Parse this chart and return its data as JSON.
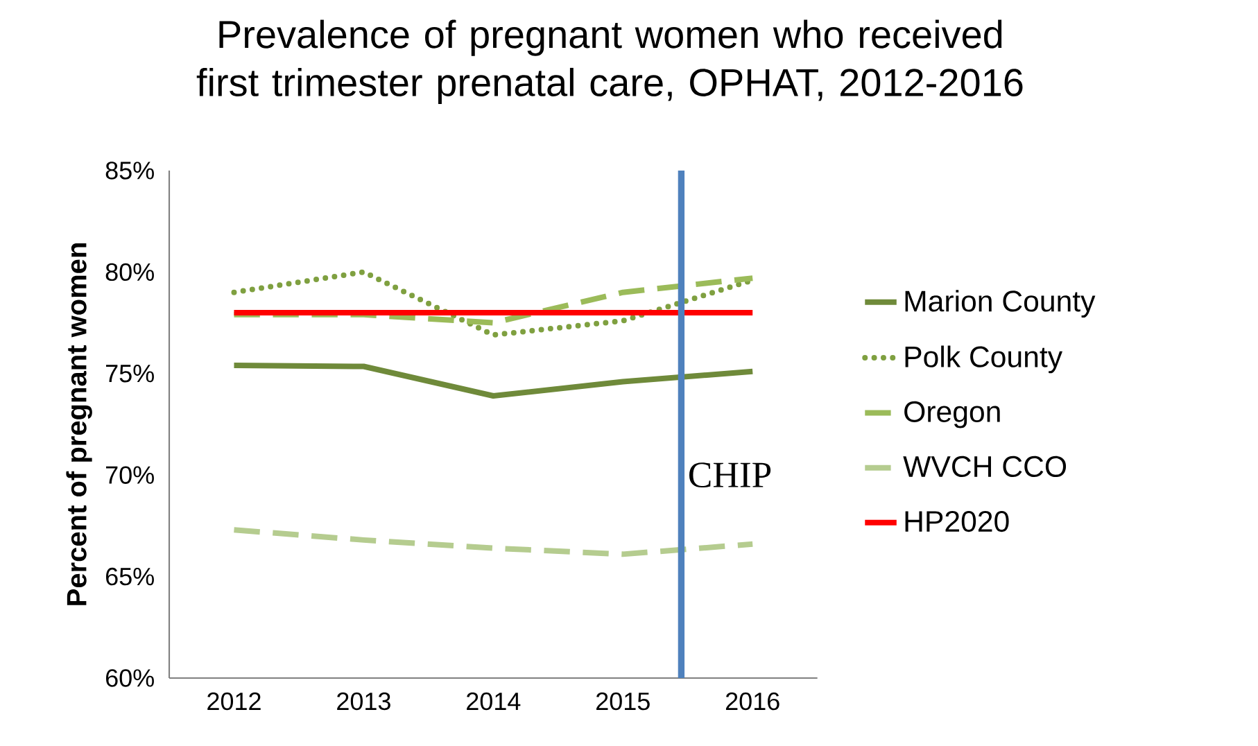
{
  "chart_data": {
    "type": "line",
    "title": "Prevalence of pregnant women who received first trimester prenatal care, OPHAT, 2012-2016",
    "ylabel": "Percent of pregnant women",
    "x": [
      2012,
      2013,
      2014,
      2015,
      2016
    ],
    "xlim": [
      2011.5,
      2016.5
    ],
    "xticks": [
      2012,
      2013,
      2014,
      2015,
      2016
    ],
    "ylim": [
      60,
      85
    ],
    "yticks": [
      {
        "value": 60,
        "label": "60%"
      },
      {
        "value": 65,
        "label": "65%"
      },
      {
        "value": 70,
        "label": "70%"
      },
      {
        "value": 75,
        "label": "75%"
      },
      {
        "value": 80,
        "label": "80%"
      },
      {
        "value": 85,
        "label": "85%"
      }
    ],
    "series": [
      {
        "name": "Marion County",
        "color": "#6f8a3a",
        "line_style": "solid",
        "values": [
          75.4,
          75.35,
          73.9,
          74.6,
          75.1
        ]
      },
      {
        "name": "Polk County",
        "color": "#7fa040",
        "line_style": "dotted",
        "values": [
          79.0,
          80.0,
          76.9,
          77.6,
          79.6
        ]
      },
      {
        "name": "Oregon",
        "color": "#9bbb59",
        "line_style": "dashed",
        "values": [
          77.9,
          77.9,
          77.5,
          79.0,
          79.7
        ]
      },
      {
        "name": "WVCH CCO",
        "color": "#b5cc8f",
        "line_style": "dashed",
        "values": [
          67.3,
          66.8,
          66.4,
          66.1,
          66.6
        ]
      },
      {
        "name": "HP2020",
        "color": "#ff0000",
        "line_style": "solid",
        "values": [
          78,
          78,
          78,
          78,
          78
        ]
      }
    ],
    "ref_lines": [
      {
        "axis": "x",
        "value": 2015.45,
        "label": "CHIP",
        "color": "#4f81bd"
      }
    ],
    "legend": "right",
    "grid": false,
    "marker": "none"
  }
}
